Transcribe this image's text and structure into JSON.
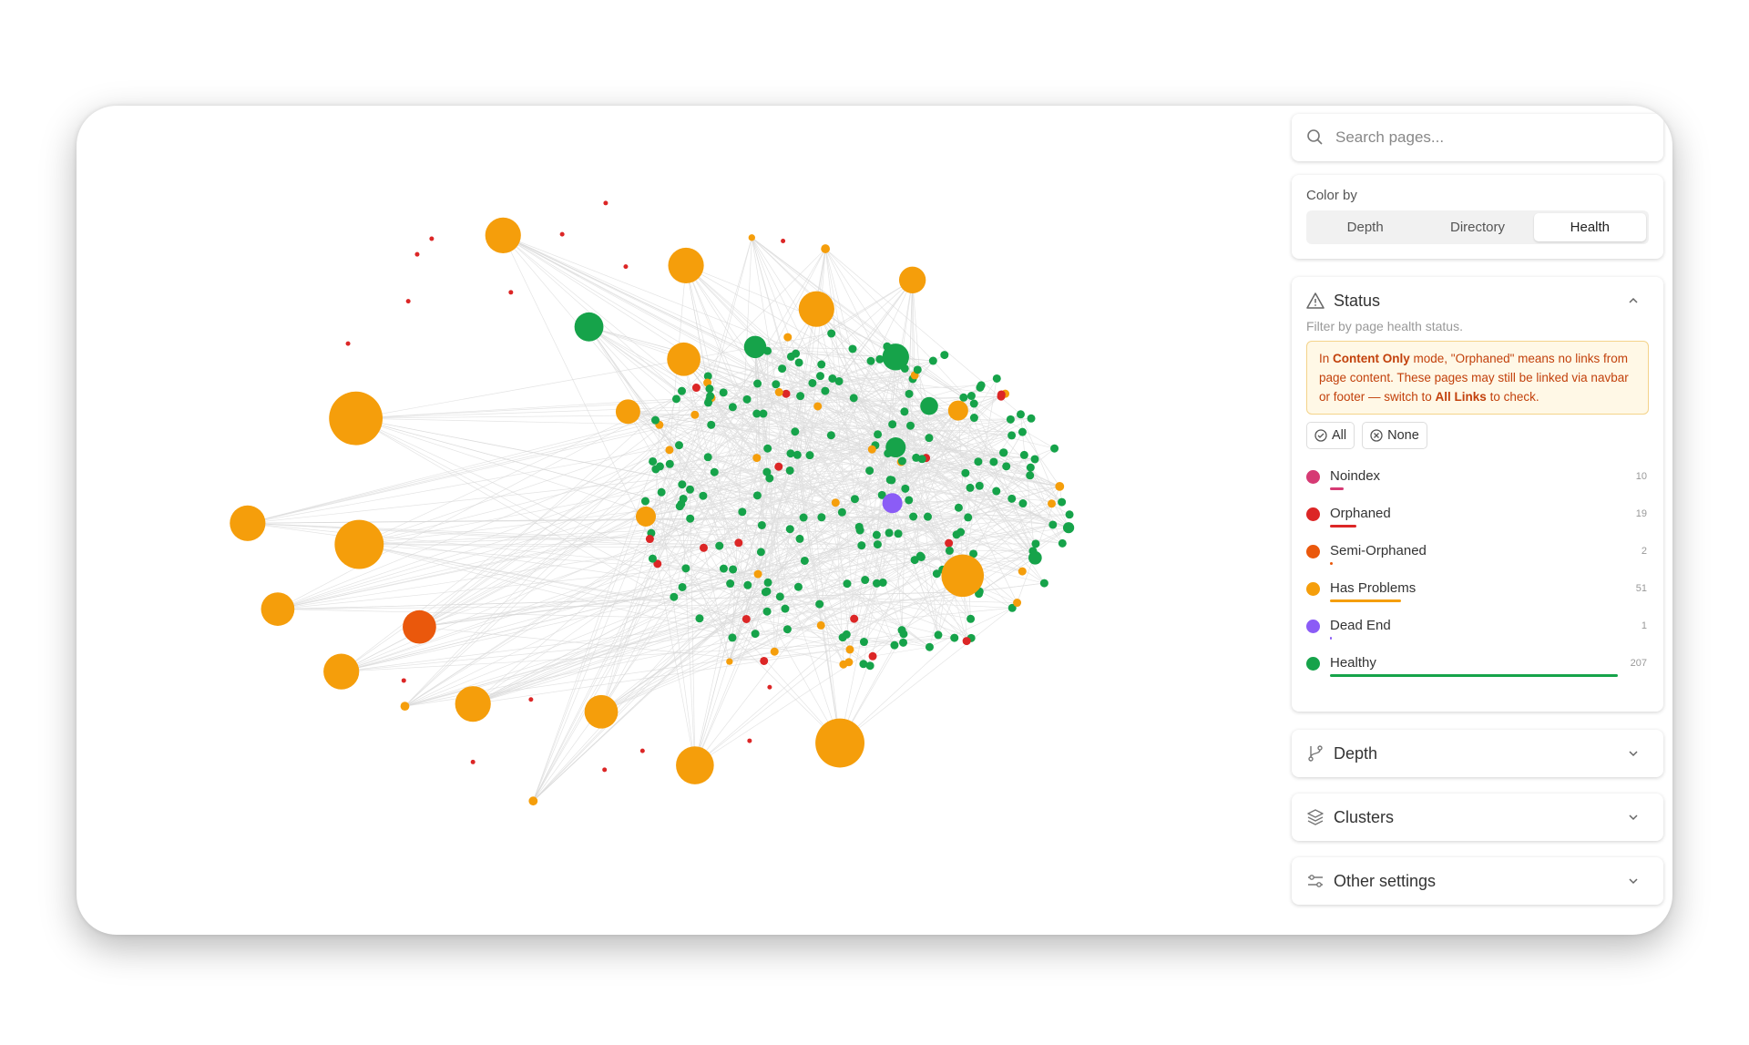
{
  "search": {
    "placeholder": "Search pages..."
  },
  "color_by": {
    "label": "Color by",
    "options": [
      "Depth",
      "Directory",
      "Health"
    ],
    "selected": 2
  },
  "status": {
    "title": "Status",
    "subtitle": "Filter by page health status.",
    "warning": [
      "In ",
      "Content Only",
      " mode, \"Orphaned\" means no links from page content. These pages may still be linked via navbar or footer — switch to ",
      "All Links",
      " to check."
    ],
    "buttons": [
      "All",
      "None"
    ],
    "items": [
      {
        "name": "Noindex",
        "count": 10,
        "color": "#d63a74"
      },
      {
        "name": "Orphaned",
        "count": 19,
        "color": "#dc2626"
      },
      {
        "name": "Semi-Orphaned",
        "count": 2,
        "color": "#ea580c"
      },
      {
        "name": "Has Problems",
        "count": 51,
        "color": "#f59e0b"
      },
      {
        "name": "Dead End",
        "count": 1,
        "color": "#8b5cf6"
      },
      {
        "name": "Healthy",
        "count": 207,
        "color": "#16a34a"
      }
    ]
  },
  "sections": [
    "Depth",
    "Clusters",
    "Other settings"
  ]
}
